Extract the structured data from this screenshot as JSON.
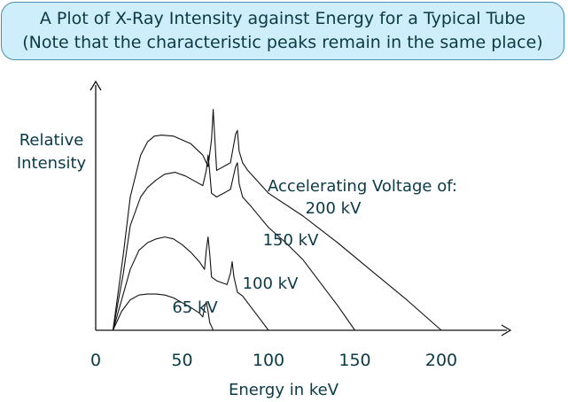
{
  "title": {
    "line1": "A Plot of X-Ray Intensity against Energy for a Typical Tube",
    "line2": "(Note that the characteristic peaks remain in the same place)"
  },
  "chart_data": {
    "type": "line",
    "title": "A Plot of X-Ray Intensity against Energy for a Typical Tube",
    "subtitle": "(Note that the characteristic peaks remain in the same place)",
    "xlabel": "Energy in keV",
    "ylabel": "Relative Intensity",
    "ylabel_lines": [
      "Relative",
      "Intensity"
    ],
    "xlim": [
      0,
      240
    ],
    "ylim": [
      0,
      100
    ],
    "x_ticks": [
      0,
      50,
      100,
      150,
      200
    ],
    "grid": false,
    "legend_heading": "Accelerating Voltage of:",
    "series": [
      {
        "name": "200 kV",
        "x": [
          10,
          16,
          20,
          26,
          30,
          34,
          38,
          45,
          55,
          62,
          65,
          67,
          68,
          69,
          70,
          72,
          78,
          81,
          82,
          83,
          85,
          88,
          100,
          120,
          140,
          160,
          180,
          200
        ],
        "y": [
          0,
          40,
          70,
          92,
          99,
          102,
          102.5,
          102,
          98,
          92,
          86,
          100,
          116,
          100,
          84,
          85,
          88,
          103,
          105,
          94,
          88,
          84,
          72,
          60,
          46,
          31,
          16,
          0
        ]
      },
      {
        "name": "150 kV",
        "x": [
          10,
          16,
          20,
          26,
          30,
          35,
          40,
          46,
          52,
          58,
          62,
          64,
          65,
          66,
          67,
          70,
          78,
          81,
          82,
          83,
          85,
          90,
          100,
          110,
          120,
          130,
          140,
          150
        ],
        "y": [
          0,
          30,
          55,
          70,
          75,
          79,
          82,
          83,
          81,
          78,
          76,
          84,
          92,
          83,
          72,
          70,
          74,
          86,
          88,
          77,
          70,
          65,
          54,
          46,
          37,
          25,
          13,
          0
        ]
      },
      {
        "name": "100 kV",
        "x": [
          10,
          15,
          20,
          25,
          30,
          35,
          40,
          45,
          50,
          55,
          60,
          63,
          64,
          65,
          66,
          67,
          70,
          76,
          78,
          79,
          80,
          82,
          85,
          90,
          95,
          100
        ],
        "y": [
          0,
          16,
          32,
          42,
          46,
          48,
          49,
          48,
          45,
          41,
          36,
          32,
          42,
          49,
          40,
          28,
          26,
          24,
          30,
          36,
          28,
          20,
          18,
          12,
          6,
          0
        ]
      },
      {
        "name": "65 kV",
        "x": [
          10,
          15,
          20,
          25,
          30,
          35,
          40,
          45,
          50,
          55,
          60,
          62,
          63,
          64,
          65,
          66,
          67,
          68
        ],
        "y": [
          0,
          10,
          16,
          18.5,
          19,
          19,
          18.5,
          17,
          14.5,
          12,
          9,
          7,
          12,
          15,
          10,
          4,
          2,
          0
        ]
      }
    ]
  }
}
